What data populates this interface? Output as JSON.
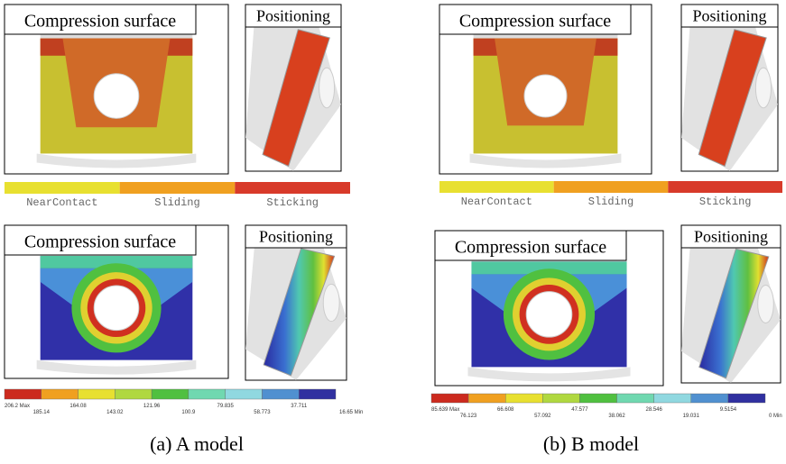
{
  "panels": [
    {
      "compression_label": "Compression surface",
      "positioning_label": "Positioning",
      "contact_legend": [
        "NearContact",
        "Sliding",
        "Sticking"
      ],
      "pressure_compression_label": "Compression surface",
      "pressure_positioning_label": "Positioning",
      "pressure_legend": [
        "206.2 Max",
        "185.14",
        "164.08",
        "143.02",
        "121.96",
        "100.9",
        "79.835",
        "58.773",
        "37.711",
        "16.65 Min"
      ],
      "caption": "(a) A model"
    },
    {
      "compression_label": "Compression surface",
      "positioning_label": "Positioning",
      "contact_legend": [
        "NearContact",
        "Sliding",
        "Sticking"
      ],
      "pressure_compression_label": "Compression surface",
      "pressure_positioning_label": "Positioning",
      "pressure_legend": [
        "85.639 Max",
        "76.123",
        "66.608",
        "57.092",
        "47.577",
        "38.062",
        "28.546",
        "19.031",
        "9.5154",
        "0 Min"
      ],
      "caption": "(b) B model"
    }
  ]
}
